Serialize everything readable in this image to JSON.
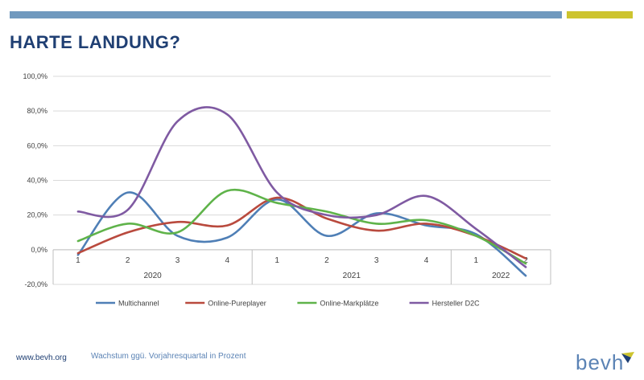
{
  "page": {
    "title": "HARTE LANDUNG?",
    "footer_url": "www.bevh.org",
    "footer_note": "Wachstum ggü. Vorjahresquartal in Prozent",
    "logo_text": "bevh",
    "bar_colors": {
      "blue": "#7099be",
      "yellow": "#cdc42f"
    }
  },
  "chart_data": {
    "type": "line",
    "smooth": true,
    "quarters": [
      "1",
      "2",
      "3",
      "4",
      "1",
      "2",
      "3",
      "4",
      "1",
      "2"
    ],
    "years": [
      {
        "label": "2020",
        "start": 0,
        "end": 3
      },
      {
        "label": "2021",
        "start": 4,
        "end": 7
      },
      {
        "label": "2022",
        "start": 8,
        "end": 9
      }
    ],
    "ylim": [
      -20,
      100
    ],
    "yticks": [
      -20,
      0,
      20,
      40,
      60,
      80,
      100
    ],
    "ytick_labels": [
      "-20,0%",
      "0,0%",
      "20,0%",
      "40,0%",
      "60,0%",
      "80,0%",
      "100,0%"
    ],
    "grid": true,
    "legend_position": "bottom",
    "series": [
      {
        "name": "Multichannel",
        "color": "#4f7fb6",
        "values": [
          -3,
          33,
          8,
          7,
          29,
          8,
          21,
          14,
          9,
          -15
        ]
      },
      {
        "name": "Online-Pureplayer",
        "color": "#b94a3e",
        "values": [
          -2,
          10,
          16,
          14,
          30,
          18,
          11,
          15,
          8,
          -5
        ]
      },
      {
        "name": "Online-Markplätze",
        "color": "#5fb34a",
        "values": [
          5,
          15,
          10,
          34,
          27,
          22,
          15,
          17,
          8,
          -8
        ]
      },
      {
        "name": "Hersteller D2C",
        "color": "#7f5aa2",
        "values": [
          22,
          23,
          74,
          78,
          33,
          20,
          20,
          31,
          12,
          -10
        ]
      }
    ]
  }
}
